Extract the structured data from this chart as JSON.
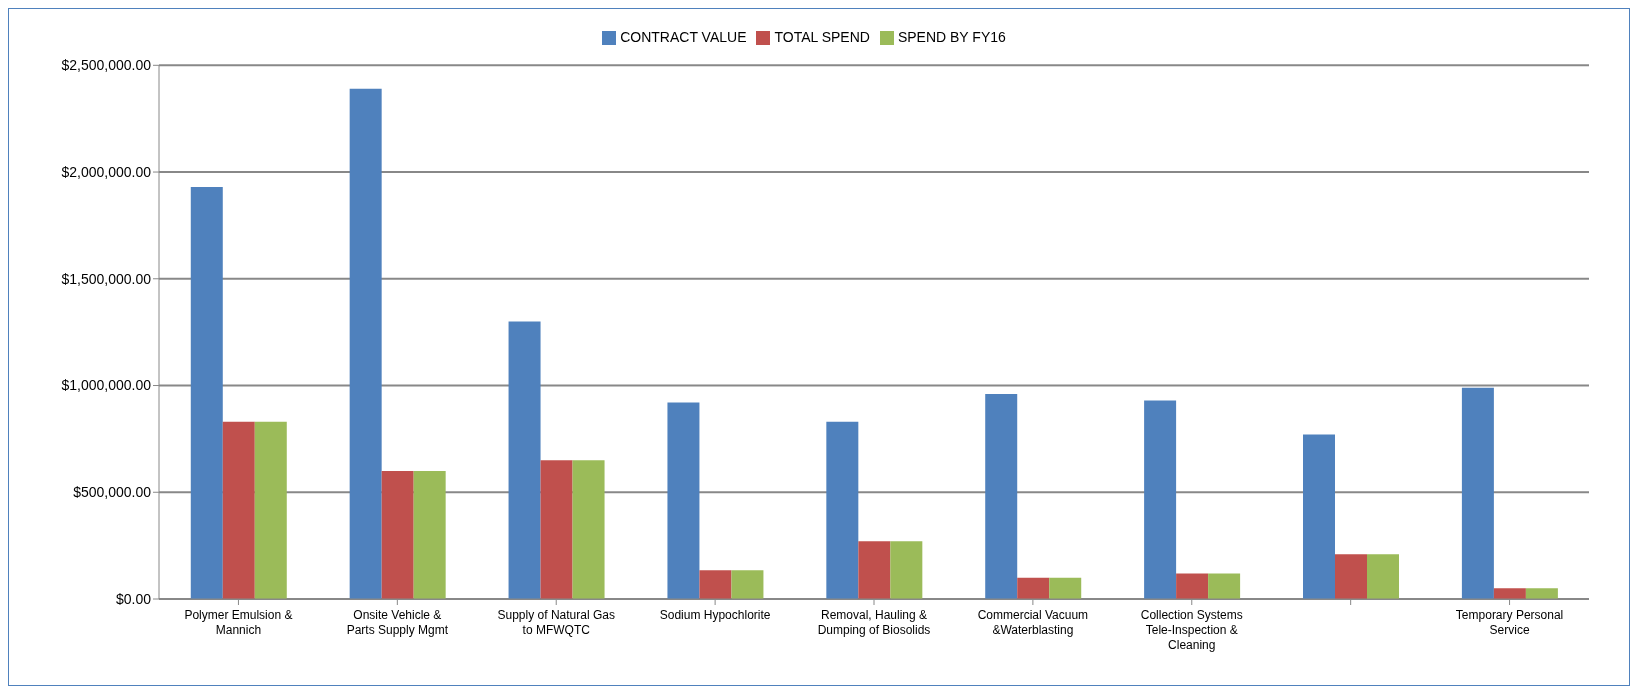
{
  "chart_data": {
    "type": "bar",
    "categories": [
      "Polymer Emulsion & Mannich",
      "Onsite Vehicle & Parts Supply Mgmt",
      "Supply of Natural Gas to MFWQTC",
      "Sodium Hypochlorite",
      "Removal, Hauling & Dumping of Biosolids",
      "Commercial Vacuum &Waterblasting",
      "Collection Systems Tele-Inspection & Cleaning",
      null,
      "Temporary Personal Service"
    ],
    "series": [
      {
        "name": "CONTRACT VALUE",
        "color": "#4f81bd",
        "values": [
          1930000,
          2390000,
          1300000,
          920000,
          830000,
          960000,
          930000,
          770000,
          990000
        ]
      },
      {
        "name": "TOTAL SPEND",
        "color": "#c0504d",
        "values": [
          830000,
          600000,
          650000,
          135000,
          270000,
          100000,
          120000,
          210000,
          50000
        ]
      },
      {
        "name": "SPEND BY FY16",
        "color": "#9bbb59",
        "values": [
          830000,
          600000,
          650000,
          135000,
          270000,
          100000,
          120000,
          210000,
          50000
        ]
      }
    ],
    "ylim": [
      0,
      2500000
    ],
    "yticks": [
      {
        "value": 0,
        "label": "$0.00"
      },
      {
        "value": 500000,
        "label": "$500,000.00"
      },
      {
        "value": 1000000,
        "label": "$1,000,000.00"
      },
      {
        "value": 1500000,
        "label": "$1,500,000.00"
      },
      {
        "value": 2000000,
        "label": "$2,000,000.00"
      },
      {
        "value": 2500000,
        "label": "$2,500,000.00"
      }
    ],
    "grid": "y",
    "legend": "top"
  }
}
